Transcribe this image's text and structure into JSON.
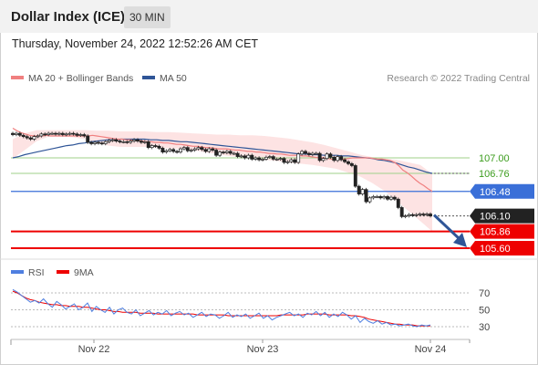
{
  "header": {
    "title": "Dollar Index (ICE)",
    "timeframe": "30 MIN"
  },
  "datetime": "Thursday, November 24, 2022 12:52:26 AM CET",
  "legend": {
    "ma20": "MA 20 + Bollinger Bands",
    "ma50": "MA 50",
    "credit": "Research © 2022 Trading Central"
  },
  "rsi_legend": {
    "rsi": "RSI",
    "ma": "9MA"
  },
  "colors": {
    "ma20": "#f08080",
    "ma50": "#2f5597",
    "bollinger_fill": "#fde0e0",
    "candle": "#222222",
    "support_red": "#ee0000",
    "pivot_blue": "#3a6fd8",
    "resistance_green": "#9fd28a",
    "last_price": "#222222",
    "rsi": "#4f7fe0",
    "rsi_ma": "#ee0000"
  },
  "chart_data": [
    {
      "type": "candlestick",
      "title": "",
      "x_ticks": [
        "Nov 22",
        "Nov 23",
        "Nov 24"
      ],
      "y_ticks": [
        107.0,
        106.76,
        106.48,
        106.1,
        105.86,
        105.6
      ],
      "ylim": [
        105.55,
        107.55
      ],
      "price_levels": [
        {
          "label": "107.00",
          "value": 107.0,
          "kind": "resistance"
        },
        {
          "label": "106.76",
          "value": 106.76,
          "kind": "resistance"
        },
        {
          "label": "106.48",
          "value": 106.48,
          "kind": "pivot"
        },
        {
          "label": "106.10",
          "value": 106.1,
          "kind": "last"
        },
        {
          "label": "105.86",
          "value": 105.86,
          "kind": "support"
        },
        {
          "label": "105.60",
          "value": 105.6,
          "kind": "support"
        }
      ],
      "close_series": [
        107.36,
        107.38,
        107.35,
        107.33,
        107.31,
        107.29,
        107.33,
        107.34,
        107.37,
        107.36,
        107.38,
        107.38,
        107.37,
        107.38,
        107.36,
        107.37,
        107.38,
        107.37,
        107.35,
        107.36,
        107.34,
        107.24,
        107.22,
        107.24,
        107.23,
        107.22,
        107.25,
        107.27,
        107.28,
        107.26,
        107.25,
        107.25,
        107.24,
        107.26,
        107.28,
        107.26,
        107.24,
        107.25,
        107.16,
        107.19,
        107.18,
        107.15,
        107.09,
        107.11,
        107.13,
        107.1,
        107.09,
        107.14,
        107.16,
        107.11,
        107.12,
        107.14,
        107.16,
        107.13,
        107.1,
        107.14,
        107.12,
        107.04,
        107.09,
        107.08,
        107.1,
        107.07,
        107.07,
        107.02,
        107.03,
        107.0,
        107.04,
        106.98,
        107.0,
        106.97,
        106.98,
        107.01,
        107.02,
        106.98,
        106.98,
        106.99,
        106.93,
        106.94,
        106.97,
        106.93,
        107.06,
        107.1,
        107.07,
        107.05,
        107.07,
        107.07,
        106.96,
        106.99,
        107.06,
        107.01,
        106.96,
        107.02,
        106.97,
        106.94,
        106.91,
        106.88,
        106.56,
        106.44,
        106.51,
        106.32,
        106.38,
        106.4,
        106.4,
        106.38,
        106.4,
        106.36,
        106.39,
        106.36,
        106.23,
        106.09,
        106.1,
        106.12,
        106.11,
        106.12,
        106.13,
        106.12,
        106.13,
        106.1
      ],
      "ma20": [
        107.46,
        107.42,
        107.39,
        107.37,
        107.35,
        107.34,
        107.34,
        107.34,
        107.35,
        107.34,
        107.34,
        107.34,
        107.34,
        107.34,
        107.34,
        107.34,
        107.34,
        107.34,
        107.34,
        107.35,
        107.34,
        107.33,
        107.32,
        107.31,
        107.3,
        107.29,
        107.29,
        107.28,
        107.28,
        107.27,
        107.27,
        107.26,
        107.25,
        107.25,
        107.24,
        107.24,
        107.23,
        107.23,
        107.22,
        107.21,
        107.21,
        107.2,
        107.19,
        107.18,
        107.18,
        107.17,
        107.16,
        107.16,
        107.15,
        107.14,
        107.14,
        107.14,
        107.13,
        107.12,
        107.12,
        107.11,
        107.1,
        107.1,
        107.09,
        107.09,
        107.08,
        107.07,
        107.07,
        107.06,
        107.06,
        107.05,
        107.04,
        107.04,
        107.04,
        107.03,
        107.03,
        107.02,
        107.01,
        107.0,
        107.0,
        106.99,
        106.98,
        106.98,
        106.98,
        106.98,
        106.99,
        107.0,
        107.0,
        107.0,
        107.0,
        107.0,
        106.99,
        106.98,
        106.98,
        106.97,
        106.96,
        106.93,
        106.88,
        106.81,
        106.77,
        106.72,
        106.66,
        106.61,
        106.57,
        106.52,
        106.48
      ],
      "ma50": [
        107.0,
        107.02,
        107.05,
        107.07,
        107.09,
        107.11,
        107.13,
        107.15,
        107.17,
        107.19,
        107.2,
        107.22,
        107.23,
        107.25,
        107.26,
        107.27,
        107.28,
        107.28,
        107.29,
        107.29,
        107.29,
        107.29,
        107.29,
        107.28,
        107.28,
        107.27,
        107.27,
        107.26,
        107.25,
        107.25,
        107.24,
        107.23,
        107.22,
        107.21,
        107.2,
        107.19,
        107.18,
        107.17,
        107.16,
        107.15,
        107.14,
        107.13,
        107.12,
        107.11,
        107.1,
        107.09,
        107.08,
        107.07,
        107.06,
        107.06,
        107.05,
        107.05,
        107.04,
        107.04,
        107.04,
        107.03,
        107.03,
        107.02,
        107.01,
        107.0,
        106.99,
        106.97,
        106.96,
        106.94,
        106.92,
        106.89,
        106.86,
        106.84,
        106.81,
        106.78,
        106.76
      ],
      "bollinger_upper": [
        107.29,
        107.38,
        107.43,
        107.43,
        107.43,
        107.43,
        107.43,
        107.42,
        107.42,
        107.41,
        107.41,
        107.41,
        107.4,
        107.4,
        107.39,
        107.38,
        107.37,
        107.36,
        107.36,
        107.35,
        107.35,
        107.34,
        107.32,
        107.3,
        107.27,
        107.24,
        107.2,
        107.15,
        107.1,
        107.05,
        107.01,
        106.99,
        106.97,
        106.93,
        106.89,
        106.75
      ],
      "bollinger_lower": [
        106.99,
        107.12,
        107.26,
        107.33,
        107.33,
        107.32,
        107.29,
        107.24,
        107.19,
        107.17,
        107.17,
        107.17,
        107.16,
        107.15,
        107.14,
        107.12,
        107.09,
        107.06,
        107.03,
        107.01,
        106.99,
        106.97,
        106.95,
        106.93,
        106.91,
        106.89,
        106.86,
        106.83,
        106.77,
        106.71,
        106.61,
        106.49,
        106.34,
        106.18,
        106.02,
        105.86
      ],
      "forecast_arrow": [
        106.1,
        105.6
      ]
    },
    {
      "type": "line",
      "title": "",
      "y_ticks": [
        70,
        50,
        30
      ],
      "ylim": [
        20,
        80
      ],
      "series": [
        {
          "name": "RSI",
          "values": [
            74,
            71,
            67,
            63,
            59,
            61,
            58,
            63,
            57,
            53,
            60,
            56,
            51,
            54,
            57,
            50,
            53,
            58,
            48,
            54,
            50,
            47,
            53,
            45,
            50,
            52,
            47,
            45,
            50,
            43,
            46,
            49,
            44,
            47,
            45,
            49,
            43,
            46,
            48,
            44,
            46,
            41,
            44,
            47,
            42,
            45,
            44,
            40,
            43,
            47,
            41,
            44,
            42,
            45,
            40,
            43,
            46,
            40,
            43,
            38,
            41,
            43,
            45,
            47,
            43,
            45,
            41,
            46,
            44,
            48,
            43,
            47,
            41,
            45,
            42,
            47,
            44,
            39,
            43,
            35,
            40,
            36,
            34,
            37,
            33,
            35,
            32,
            33,
            31,
            32,
            33,
            31,
            30,
            32,
            31,
            32
          ]
        },
        {
          "name": "9MA",
          "values": [
            72,
            70,
            67,
            64,
            62,
            61,
            59,
            58,
            57,
            56,
            56,
            55,
            55,
            54,
            54,
            54,
            53,
            53,
            52,
            51,
            50,
            50,
            49,
            48,
            48,
            47,
            47,
            47,
            47,
            46,
            46,
            46,
            46,
            45,
            45,
            45,
            45,
            45,
            45,
            45,
            45,
            45,
            44,
            44,
            44,
            44,
            44,
            44,
            44,
            43,
            43,
            43,
            43,
            43,
            43,
            43,
            43,
            43,
            43,
            43,
            43,
            44,
            44,
            44,
            44,
            44,
            44,
            45,
            45,
            45,
            45,
            45,
            44,
            44,
            44,
            44,
            44,
            43,
            43,
            42,
            41,
            39,
            38,
            37,
            36,
            35,
            34,
            33,
            33,
            32,
            32,
            32,
            31,
            31,
            31,
            31
          ]
        }
      ]
    }
  ]
}
